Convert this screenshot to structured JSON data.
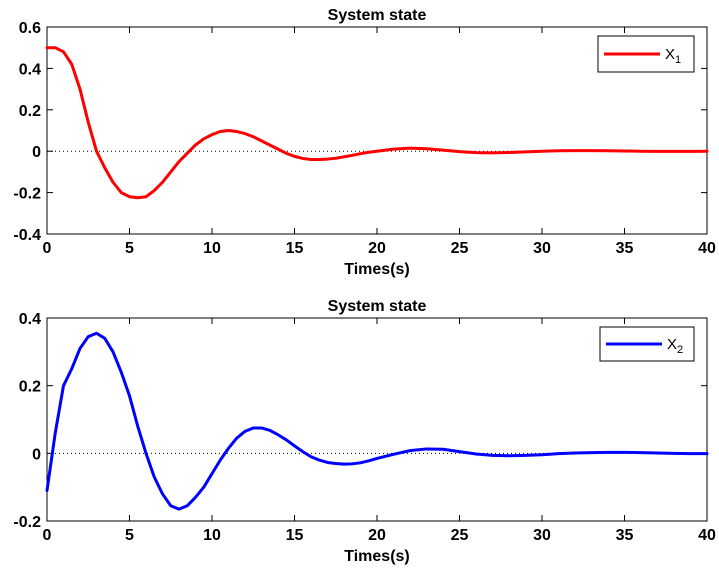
{
  "chart_data": [
    {
      "type": "line",
      "title": "System state",
      "xlabel": "Times(s)",
      "ylabel": "",
      "xlim": [
        0,
        40
      ],
      "ylim": [
        -0.4,
        0.6
      ],
      "xticks": [
        0,
        5,
        10,
        15,
        20,
        25,
        30,
        35,
        40
      ],
      "yticks": [
        -0.4,
        -0.2,
        0,
        0.2,
        0.4,
        0.6
      ],
      "grid": false,
      "zero_line": true,
      "legend_position": "top-right",
      "series": [
        {
          "name": "X",
          "subscript": "1",
          "color": "#ff0000",
          "x": [
            0,
            0.5,
            1,
            1.5,
            2,
            2.5,
            3,
            3.5,
            4,
            4.5,
            5,
            5.5,
            6,
            6.5,
            7,
            7.5,
            8,
            8.5,
            9,
            9.5,
            10,
            10.5,
            11,
            11.5,
            12,
            12.5,
            13,
            13.5,
            14,
            14.5,
            15,
            15.5,
            16,
            16.5,
            17,
            17.5,
            18,
            18.5,
            19,
            19.5,
            20,
            21,
            22,
            23,
            24,
            25,
            26,
            27,
            28,
            29,
            30,
            31,
            32,
            33,
            34,
            35,
            36,
            37,
            38,
            39,
            40
          ],
          "y": [
            0.5,
            0.5,
            0.48,
            0.42,
            0.3,
            0.14,
            0.0,
            -0.08,
            -0.15,
            -0.2,
            -0.22,
            -0.225,
            -0.22,
            -0.19,
            -0.15,
            -0.1,
            -0.05,
            -0.01,
            0.03,
            0.06,
            0.08,
            0.095,
            0.1,
            0.095,
            0.085,
            0.07,
            0.05,
            0.03,
            0.01,
            -0.01,
            -0.025,
            -0.035,
            -0.04,
            -0.04,
            -0.038,
            -0.034,
            -0.027,
            -0.02,
            -0.012,
            -0.005,
            0.0,
            0.01,
            0.015,
            0.012,
            0.005,
            -0.002,
            -0.007,
            -0.008,
            -0.006,
            -0.003,
            0.0,
            0.002,
            0.003,
            0.003,
            0.002,
            0.001,
            0.0,
            -0.001,
            -0.001,
            -0.001,
            0.0
          ]
        }
      ]
    },
    {
      "type": "line",
      "title": "System state",
      "xlabel": "Times(s)",
      "ylabel": "",
      "xlim": [
        0,
        40
      ],
      "ylim": [
        -0.2,
        0.4
      ],
      "xticks": [
        0,
        5,
        10,
        15,
        20,
        25,
        30,
        35,
        40
      ],
      "yticks": [
        -0.2,
        0,
        0.2,
        0.4
      ],
      "grid": false,
      "zero_line": true,
      "legend_position": "top-right",
      "series": [
        {
          "name": "X",
          "subscript": "2",
          "color": "#0000ff",
          "x": [
            0,
            0.5,
            1,
            1.5,
            2,
            2.5,
            3,
            3.5,
            4,
            4.5,
            5,
            5.5,
            6,
            6.5,
            7,
            7.5,
            8,
            8.5,
            9,
            9.5,
            10,
            10.5,
            11,
            11.5,
            12,
            12.5,
            13,
            13.5,
            14,
            14.5,
            15,
            15.5,
            16,
            16.5,
            17,
            17.5,
            18,
            18.5,
            19,
            19.5,
            20,
            21,
            22,
            23,
            24,
            25,
            26,
            27,
            28,
            29,
            30,
            31,
            32,
            33,
            34,
            35,
            36,
            37,
            38,
            39,
            40
          ],
          "y": [
            -0.11,
            0.06,
            0.2,
            0.25,
            0.31,
            0.345,
            0.355,
            0.34,
            0.3,
            0.24,
            0.17,
            0.08,
            0.0,
            -0.07,
            -0.12,
            -0.155,
            -0.165,
            -0.155,
            -0.13,
            -0.1,
            -0.06,
            -0.02,
            0.015,
            0.045,
            0.065,
            0.075,
            0.075,
            0.068,
            0.055,
            0.04,
            0.022,
            0.005,
            -0.01,
            -0.02,
            -0.027,
            -0.03,
            -0.032,
            -0.031,
            -0.028,
            -0.022,
            -0.015,
            -0.003,
            0.008,
            0.013,
            0.012,
            0.005,
            -0.002,
            -0.006,
            -0.007,
            -0.006,
            -0.004,
            -0.001,
            0.001,
            0.002,
            0.003,
            0.003,
            0.002,
            0.001,
            0.0,
            -0.001,
            -0.001
          ]
        }
      ]
    }
  ]
}
